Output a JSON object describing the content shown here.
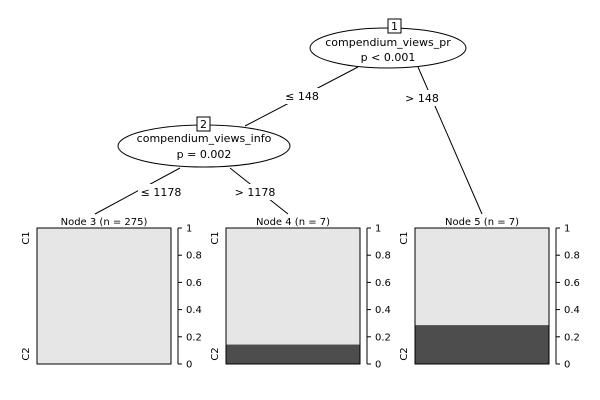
{
  "tree": {
    "nodes": [
      {
        "id": "1",
        "variable": "compendium_views_pr",
        "pvalue": "p < 0.001"
      },
      {
        "id": "2",
        "variable": "compendium_views_info",
        "pvalue": "p = 0.002"
      }
    ],
    "edges": [
      {
        "from": "1",
        "to": "2",
        "label": "≤ 148"
      },
      {
        "from": "1",
        "to": "5",
        "label": "> 148"
      },
      {
        "from": "2",
        "to": "3",
        "label": "≤ 1178"
      },
      {
        "from": "2",
        "to": "4",
        "label": "> 1178"
      }
    ],
    "terminal_colors": {
      "C1": "#e6e6e6",
      "C2": "#4d4d4d"
    }
  },
  "chart_data": {
    "type": "bar",
    "categories": [
      "C1",
      "C2"
    ],
    "ylim": [
      0,
      1
    ],
    "yticks": [
      "0",
      "0.2",
      "0.4",
      "0.6",
      "0.8",
      "1"
    ],
    "panels": [
      {
        "title": "Node 3 (n = 275)",
        "C2_fraction": 0.0
      },
      {
        "title": "Node 4 (n = 7)",
        "C2_fraction": 0.143
      },
      {
        "title": "Node 5 (n = 7)",
        "C2_fraction": 0.286
      }
    ]
  }
}
